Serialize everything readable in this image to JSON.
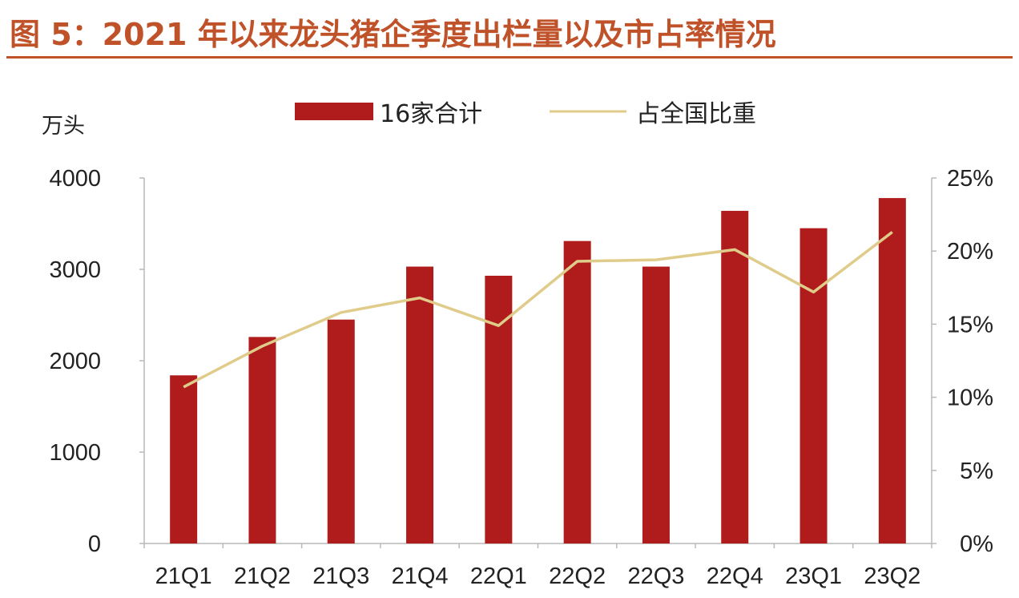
{
  "title": "图 5：2021 年以来龙头猪企季度出栏量以及市占率情况",
  "chart_data": {
    "type": "bar",
    "title": "图 5：2021 年以来龙头猪企季度出栏量以及市占率情况",
    "y_unit_label": "万头",
    "categories": [
      "21Q1",
      "21Q2",
      "21Q3",
      "21Q4",
      "22Q1",
      "22Q2",
      "22Q3",
      "22Q4",
      "23Q1",
      "23Q2"
    ],
    "series": [
      {
        "name": "16家合计",
        "type": "bar",
        "axis": "left",
        "color": "#b01c1c",
        "values": [
          1840,
          2260,
          2450,
          3030,
          2930,
          3310,
          3030,
          3640,
          3450,
          3780
        ]
      },
      {
        "name": "占全国比重",
        "type": "line",
        "axis": "right",
        "color": "#e0cc8a",
        "values": [
          10.7,
          13.5,
          15.8,
          16.8,
          14.9,
          19.3,
          19.4,
          20.1,
          17.2,
          21.3
        ]
      }
    ],
    "y_left": {
      "min": 0,
      "max": 4000,
      "ticks": [
        "0",
        "1000",
        "2000",
        "3000",
        "4000"
      ]
    },
    "y_right": {
      "min": 0,
      "max": 25,
      "ticks": [
        "0%",
        "5%",
        "10%",
        "15%",
        "20%",
        "25%"
      ]
    },
    "grid": false,
    "legend_position": "top-center"
  }
}
